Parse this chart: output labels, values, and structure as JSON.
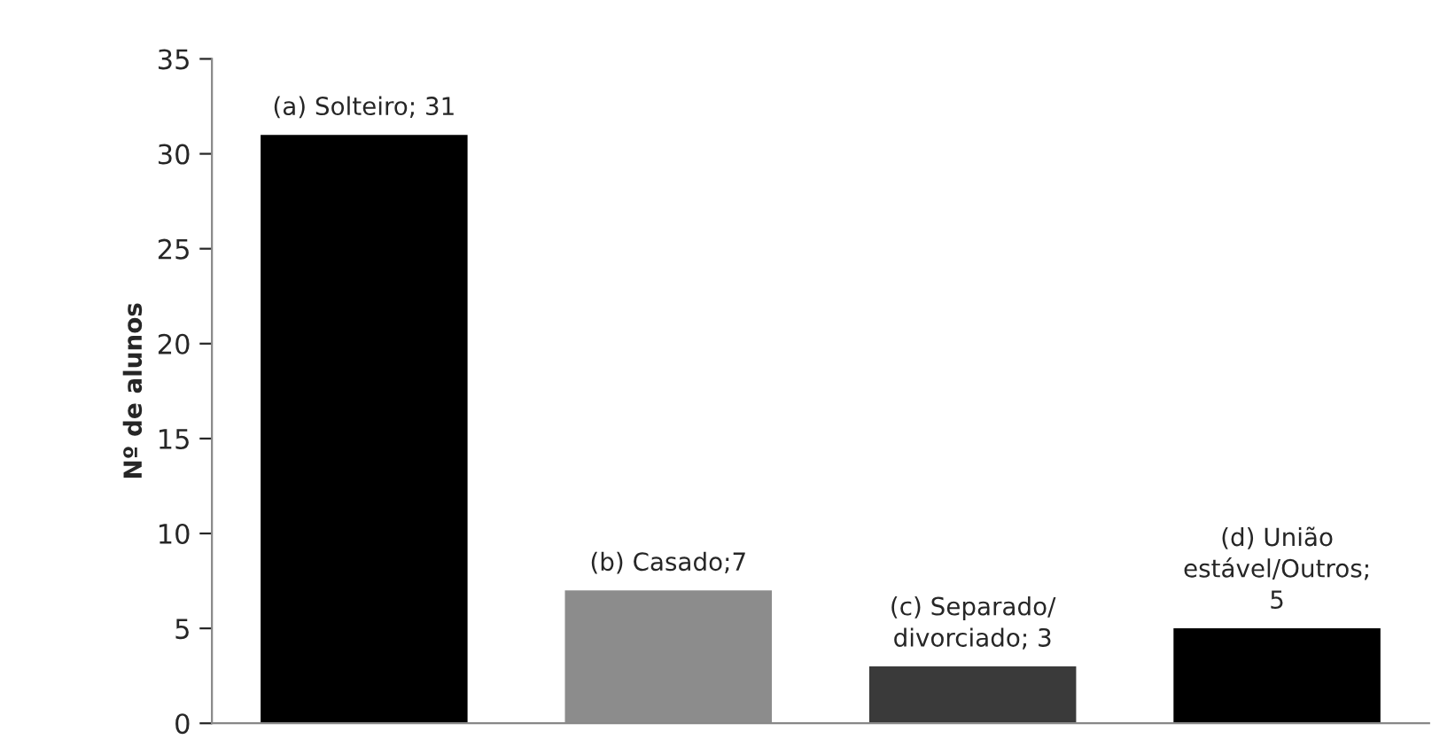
{
  "chart_data": {
    "type": "bar",
    "ylabel": "Nº de alunos",
    "categories": [
      null,
      null,
      null,
      null
    ],
    "values": [
      31,
      7,
      3,
      5
    ],
    "colors": [
      "#000000",
      "#8c8c8c",
      "#3a3a3a",
      "#000000"
    ],
    "value_labels": [
      "(a) Solteiro; 31",
      "(b) Casado;7",
      "(c) Separado/\ndivorciado; 3",
      "(d) União\nestável/Outros;\n5"
    ],
    "ylim": [
      0,
      35
    ],
    "yticks": [
      0,
      5,
      10,
      15,
      20,
      25,
      30,
      35
    ],
    "grid": false,
    "legend": false
  }
}
